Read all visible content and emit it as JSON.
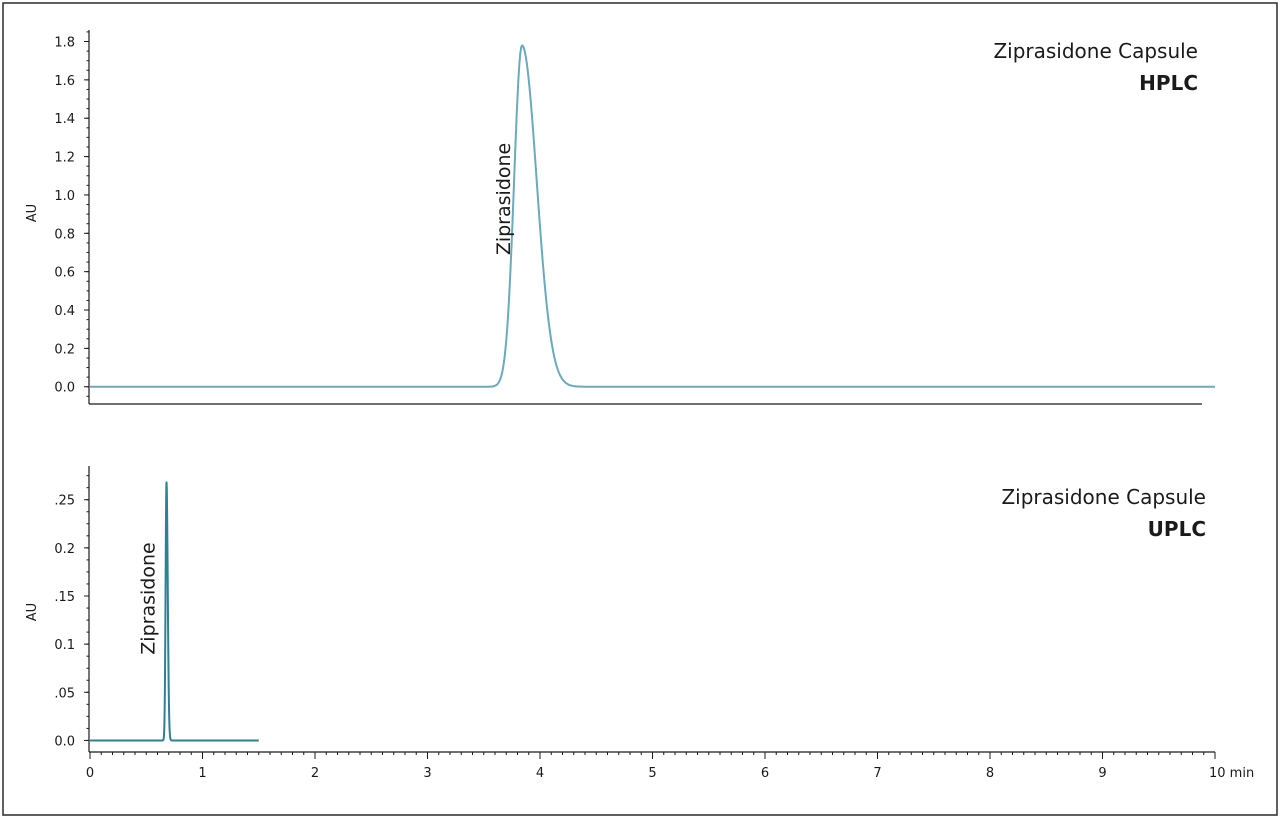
{
  "chart_data": [
    {
      "type": "line",
      "title": "Ziprasidone Capsule",
      "subtitle": "HPLC",
      "ylabel": "AU",
      "xlim": [
        0,
        10
      ],
      "ylim": [
        -0.09,
        1.86
      ],
      "yticks": [
        0.0,
        0.2,
        0.4,
        0.6,
        0.8,
        1.0,
        1.2,
        1.4,
        1.6,
        1.8
      ],
      "ytick_labels": [
        "0.0",
        "0.2",
        "0.4",
        "0.6",
        "0.8",
        "1.0",
        "1.2",
        "1.4",
        "1.6",
        "1.8"
      ],
      "grid": false,
      "color": "#6aaabb",
      "series": [
        {
          "x_range": [
            0,
            10
          ],
          "baseline": 0.0,
          "peaks": [
            {
              "label": "Ziprasidone",
              "rt": 3.84,
              "height": 1.78,
              "sigma_left": 0.07,
              "sigma_right": 0.13
            }
          ]
        }
      ]
    },
    {
      "type": "line",
      "title": "Ziprasidone Capsule",
      "subtitle": "UPLC",
      "ylabel": "AU",
      "xlabel": "min",
      "xlim": [
        0,
        10
      ],
      "ylim": [
        -0.012,
        0.285
      ],
      "yticks": [
        0.0,
        0.05,
        0.1,
        0.15,
        0.2,
        0.25
      ],
      "ytick_labels": [
        "0.0",
        ".05",
        "0.1",
        ".15",
        "0.2",
        ".25"
      ],
      "xticks": [
        0,
        1,
        2,
        3,
        4,
        5,
        6,
        7,
        8,
        9,
        10
      ],
      "xtick_labels": [
        "0",
        "1",
        "2",
        "3",
        "4",
        "5",
        "6",
        "7",
        "8",
        "9",
        "10 min"
      ],
      "grid": false,
      "color": "#2f7f95",
      "series": [
        {
          "x_range": [
            0,
            1.5
          ],
          "baseline": 0.0,
          "peaks": [
            {
              "label": "Ziprasidone",
              "rt": 0.68,
              "height": 0.268,
              "sigma_left": 0.008,
              "sigma_right": 0.011
            }
          ]
        }
      ]
    }
  ]
}
